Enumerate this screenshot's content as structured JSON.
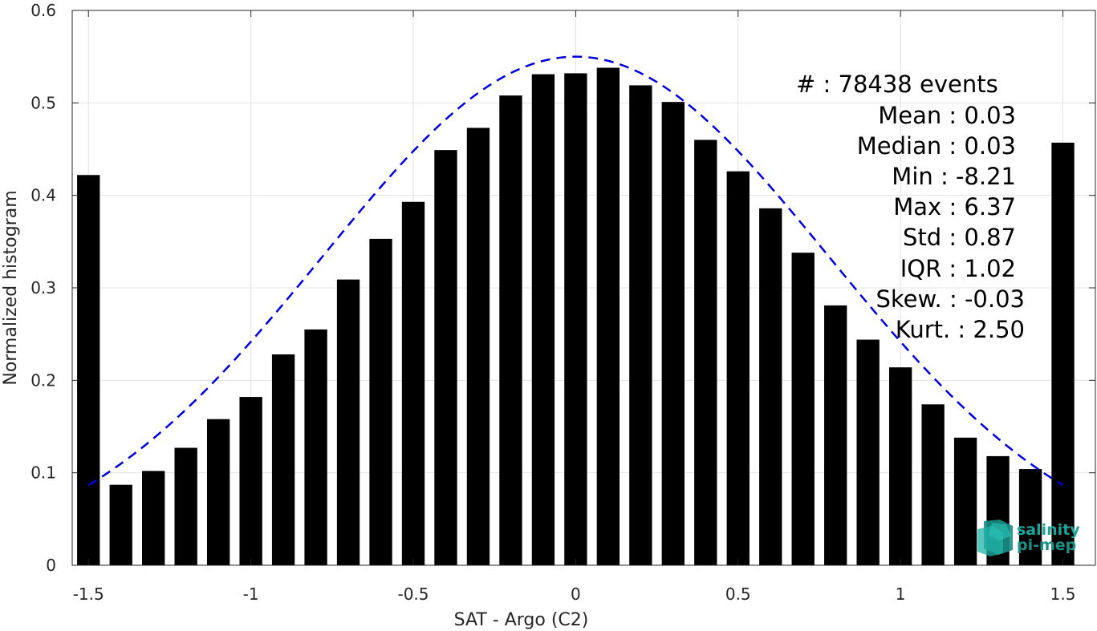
{
  "chart_data": {
    "type": "bar",
    "xlabel": "SAT - Argo (C2)",
    "ylabel": "Normalized histogram",
    "xlim": [
      -1.55,
      1.6
    ],
    "ylim": [
      0,
      0.6
    ],
    "xticks": [
      -1.5,
      -1,
      -0.5,
      0,
      0.5,
      1,
      1.5
    ],
    "xtick_labels": [
      "-1.5",
      "-1",
      "-0.5",
      "0",
      "0.5",
      "1",
      "1.5"
    ],
    "yticks": [
      0,
      0.1,
      0.2,
      0.3,
      0.4,
      0.5,
      0.6
    ],
    "ytick_labels": [
      "0",
      "0.1",
      "0.2",
      "0.3",
      "0.4",
      "0.5",
      "0.6"
    ],
    "grid": true,
    "bar_color": "#000000",
    "bar_width": 0.07,
    "x": [
      -1.5,
      -1.4,
      -1.3,
      -1.2,
      -1.1,
      -1.0,
      -0.9,
      -0.8,
      -0.7,
      -0.6,
      -0.5,
      -0.4,
      -0.3,
      -0.2,
      -0.1,
      0.0,
      0.1,
      0.2,
      0.3,
      0.4,
      0.5,
      0.6,
      0.7,
      0.8,
      0.9,
      1.0,
      1.1,
      1.2,
      1.3,
      1.4,
      1.5
    ],
    "values": [
      0.422,
      0.087,
      0.102,
      0.127,
      0.158,
      0.182,
      0.228,
      0.255,
      0.309,
      0.353,
      0.393,
      0.449,
      0.473,
      0.508,
      0.531,
      0.532,
      0.538,
      0.519,
      0.501,
      0.46,
      0.426,
      0.386,
      0.338,
      0.281,
      0.244,
      0.214,
      0.174,
      0.138,
      0.118,
      0.104,
      0.457
    ],
    "fit_curve": {
      "style": "dashed",
      "color": "#0000dd",
      "x_range": [
        -1.5,
        1.5
      ],
      "mean": 0.0,
      "peak": 0.55,
      "sigma": 0.78
    },
    "stats": {
      "count": "#  : 78438 events",
      "mean": "Mean : 0.03",
      "median": "Median : 0.03",
      "min": "Min : -8.21",
      "max": "Max : 6.37",
      "std": "Std : 0.87",
      "iqr": "IQR : 1.02",
      "skew": "Skew. : -0.03",
      "kurt": "Kurt. : 2.50"
    },
    "logo": {
      "line1": "salinity",
      "line2": "pi-mep"
    }
  }
}
